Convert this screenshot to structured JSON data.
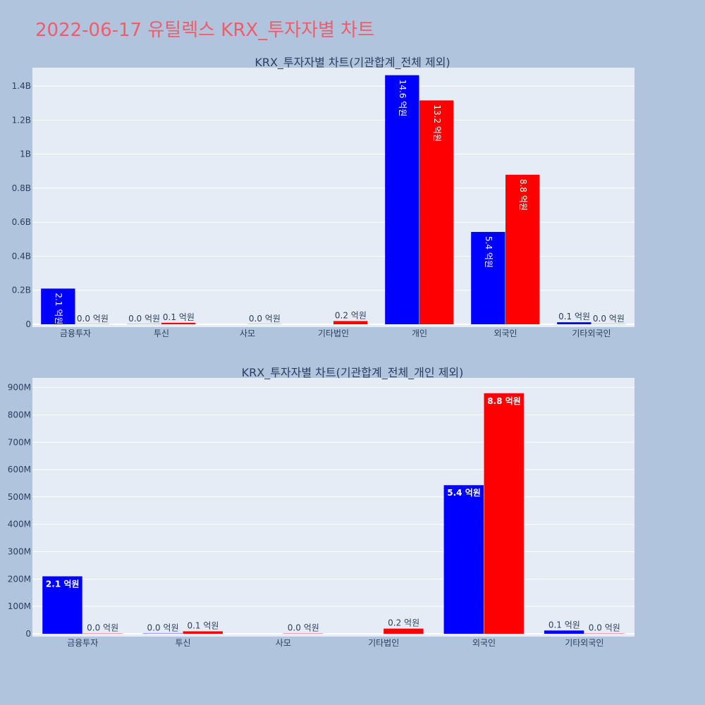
{
  "page": {
    "title": "2022-06-17 유틸렉스 KRX_투자자별 차트"
  },
  "colors": {
    "background": "#b0c4de",
    "plot_bg": "#e5ecf6",
    "series_a": "#0000ff",
    "series_b": "#ff0000",
    "title": "#ef5c6b"
  },
  "chart_data": [
    {
      "type": "bar",
      "title": "KRX_투자자별 차트(기관합계_전체 제외)",
      "categories": [
        "금융투자",
        "투신",
        "사모",
        "기타법인",
        "개인",
        "외국인",
        "기타외국인"
      ],
      "series": [
        {
          "values": [
            210000000,
            1000000,
            0,
            0,
            1464000000,
            543000000,
            12000000
          ],
          "labels": [
            "2.1 억원",
            "0.0 억원",
            "",
            "",
            "14.6 억원",
            "5.4 억원",
            "0.1 억원"
          ]
        },
        {
          "values": [
            1000000,
            9000000,
            1000000,
            19000000,
            1316000000,
            879000000,
            1000000
          ],
          "labels": [
            "0.0 억원",
            "0.1 억원",
            "0.0 억원",
            "0.2 억원",
            "13.2 억원",
            "8.8 억원",
            "0.0 억원"
          ]
        }
      ],
      "ylim": [
        0,
        1500000000
      ],
      "yticks": [
        0,
        200000000,
        400000000,
        600000000,
        800000000,
        1000000000,
        1200000000,
        1400000000
      ],
      "ytick_labels": [
        "0",
        "0.2B",
        "0.4B",
        "0.6B",
        "0.8B",
        "1B",
        "1.2B",
        "1.4B"
      ],
      "label_style": "vertical",
      "grid": true,
      "legend": "none"
    },
    {
      "type": "bar",
      "title": "KRX_투자자별 차트(기관합계_전체_개인 제외)",
      "categories": [
        "금융투자",
        "투신",
        "사모",
        "기타법인",
        "외국인",
        "기타외국인"
      ],
      "series": [
        {
          "values": [
            210000000,
            1000000,
            0,
            0,
            543000000,
            12000000
          ],
          "labels": [
            "2.1 억원",
            "0.0 억원",
            "",
            "",
            "5.4 억원",
            "0.1 억원"
          ]
        },
        {
          "values": [
            1000000,
            9000000,
            1000000,
            19000000,
            879000000,
            1000000
          ],
          "labels": [
            "0.0 억원",
            "0.1 억원",
            "0.0 억원",
            "0.2 억원",
            "8.8 억원",
            "0.0 억원"
          ]
        }
      ],
      "ylim": [
        0,
        930000000
      ],
      "yticks": [
        0,
        100000000,
        200000000,
        300000000,
        400000000,
        500000000,
        600000000,
        700000000,
        800000000,
        900000000
      ],
      "ytick_labels": [
        "0",
        "100M",
        "200M",
        "300M",
        "400M",
        "500M",
        "600M",
        "700M",
        "800M",
        "900M"
      ],
      "label_style": "horizontal",
      "grid": true,
      "legend": "none"
    }
  ]
}
